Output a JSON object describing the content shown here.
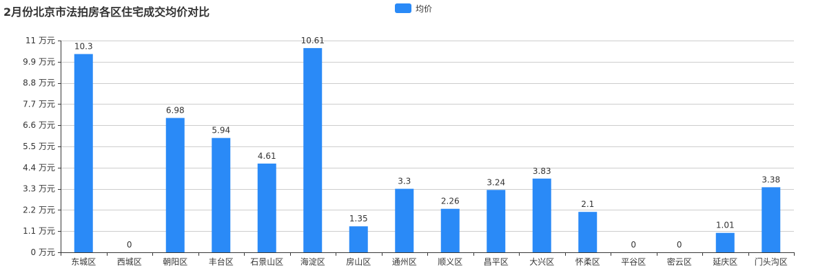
{
  "chart_data": {
    "type": "bar",
    "title": "2月份北京市法拍房各区住宅成交均价对比",
    "legend": {
      "position": "top-center",
      "entries": [
        "均价"
      ]
    },
    "y_unit": "万元",
    "ylim": [
      0,
      11
    ],
    "yticks": [
      0,
      1.1,
      2.2,
      3.3,
      4.4,
      5.5,
      6.6,
      7.7,
      8.8,
      9.9,
      11
    ],
    "grid": true,
    "categories": [
      "东城区",
      "西城区",
      "朝阳区",
      "丰台区",
      "石景山区",
      "海淀区",
      "房山区",
      "通州区",
      "顺义区",
      "昌平区",
      "大兴区",
      "怀柔区",
      "平谷区",
      "密云区",
      "延庆区",
      "门头沟区"
    ],
    "series": [
      {
        "name": "均价",
        "color": "#2a8af7",
        "values": [
          10.3,
          0,
          6.98,
          5.94,
          4.61,
          10.61,
          1.35,
          3.3,
          2.26,
          3.24,
          3.83,
          2.1,
          0,
          0,
          1.01,
          3.38
        ],
        "labels": [
          "10.3",
          "0",
          "6.98",
          "5.94",
          "4.61",
          "10.61",
          "1.35",
          "3.3",
          "2.26",
          "3.24",
          "3.83",
          "2.1",
          "0",
          "0",
          "1.01",
          "3.38"
        ]
      }
    ]
  }
}
